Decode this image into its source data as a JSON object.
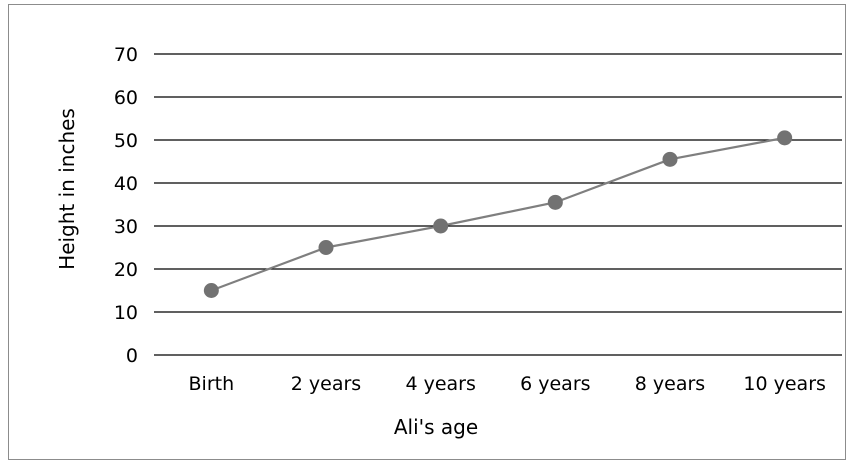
{
  "chart_data": {
    "type": "line",
    "title": "",
    "xlabel": "Ali's age",
    "ylabel": "Height in inches",
    "categories": [
      "Birth",
      "2 years",
      "4 years",
      "6 years",
      "8 years",
      "10 years"
    ],
    "series": [
      {
        "values": [
          15,
          25,
          30,
          35.5,
          45.5,
          50.5
        ]
      }
    ],
    "ylim": [
      0,
      70
    ],
    "yticks": [
      0,
      10,
      20,
      30,
      40,
      50,
      60,
      70
    ],
    "grid": true,
    "legend": "none",
    "colors": {
      "line": "#7f7f7f",
      "marker": "#727272",
      "grid": "#000000"
    }
  }
}
